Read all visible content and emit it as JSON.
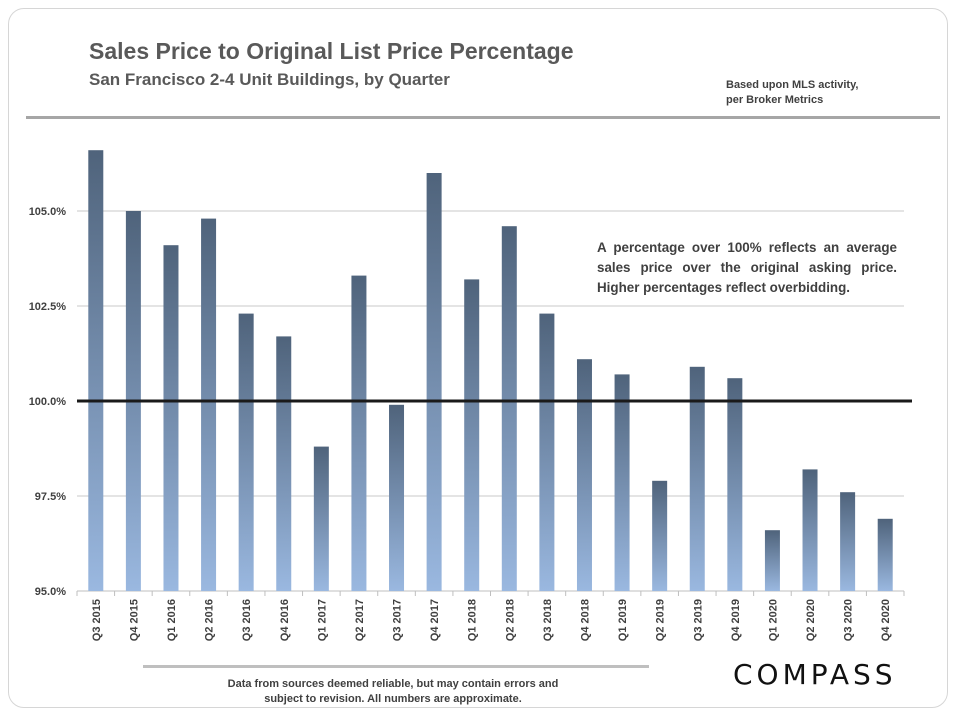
{
  "header": {
    "title": "Sales Price to Original List Price Percentage",
    "subtitle": "San Francisco 2-4 Unit Buildings, by Quarter",
    "source_line1": "Based upon MLS activity,",
    "source_line2": "per Broker Metrics"
  },
  "annotation": {
    "text": "A percentage over 100% reflects an average sales price over the original asking price. Higher percentages reflect overbidding."
  },
  "footer": {
    "disclaimer_line1": "Data from sources deemed reliable, but may contain errors and",
    "disclaimer_line2": "subject to revision. All numbers are approximate.",
    "logo": "COMPASS"
  },
  "colors": {
    "bar_top": "#4f637b",
    "bar_bottom": "#9ab8e0",
    "reference_line": "#1a1a1a",
    "grid": "#c8c8c8"
  },
  "chart_data": {
    "type": "bar",
    "categories": [
      "Q3 2015",
      "Q4 2015",
      "Q1 2016",
      "Q2 2016",
      "Q3 2016",
      "Q4 2016",
      "Q1 2017",
      "Q2 2017",
      "Q3 2017",
      "Q4 2017",
      "Q1 2018",
      "Q2 2018",
      "Q3 2018",
      "Q4 2018",
      "Q1 2019",
      "Q2 2019",
      "Q3 2019",
      "Q4 2019",
      "Q1 2020",
      "Q2 2020",
      "Q3 2020",
      "Q4 2020"
    ],
    "values": [
      106.6,
      105.0,
      104.1,
      104.8,
      102.3,
      101.7,
      98.8,
      103.3,
      99.9,
      106.0,
      103.2,
      104.6,
      102.3,
      101.1,
      100.7,
      97.9,
      100.9,
      100.6,
      96.6,
      98.2,
      97.6,
      96.9
    ],
    "ylim": [
      95.0,
      107.0
    ],
    "yticks": [
      95.0,
      97.5,
      100.0,
      102.5,
      105.0
    ],
    "ytick_labels": [
      "95.0%",
      "97.5%",
      "100.0%",
      "102.5%",
      "105.0%"
    ],
    "reference_value": 100.0,
    "grid": true,
    "xlabel": "",
    "ylabel": ""
  }
}
